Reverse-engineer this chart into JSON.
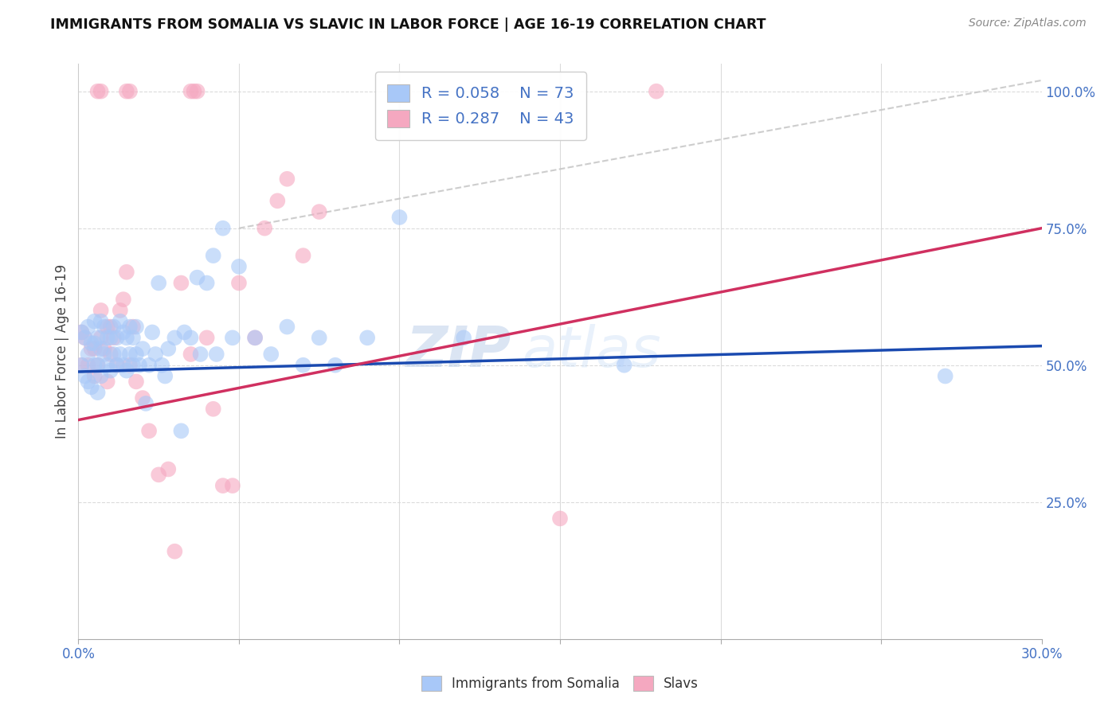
{
  "title": "IMMIGRANTS FROM SOMALIA VS SLAVIC IN LABOR FORCE | AGE 16-19 CORRELATION CHART",
  "source": "Source: ZipAtlas.com",
  "ylabel": "In Labor Force | Age 16-19",
  "xlim": [
    0.0,
    0.3
  ],
  "ylim": [
    0.0,
    1.05
  ],
  "blue_color": "#a8c8f8",
  "pink_color": "#f5a8c0",
  "blue_line_color": "#1a4ab0",
  "pink_line_color": "#d03060",
  "dashed_line_color": "#c8c8c8",
  "legend_blue_r": "0.058",
  "legend_blue_n": "73",
  "legend_pink_r": "0.287",
  "legend_pink_n": "43",
  "watermark_zip": "ZIP",
  "watermark_atlas": "atlas",
  "blue_trend_x": [
    0.0,
    0.3
  ],
  "blue_trend_y": [
    0.488,
    0.535
  ],
  "pink_trend_x": [
    0.0,
    0.3
  ],
  "pink_trend_y": [
    0.4,
    0.75
  ],
  "dash_trend_x": [
    0.05,
    0.3
  ],
  "dash_trend_y": [
    0.75,
    1.02
  ],
  "blue_points_x": [
    0.001,
    0.001,
    0.002,
    0.002,
    0.003,
    0.003,
    0.003,
    0.004,
    0.004,
    0.005,
    0.005,
    0.005,
    0.006,
    0.006,
    0.006,
    0.007,
    0.007,
    0.007,
    0.008,
    0.008,
    0.009,
    0.009,
    0.01,
    0.01,
    0.011,
    0.011,
    0.012,
    0.012,
    0.013,
    0.013,
    0.014,
    0.014,
    0.015,
    0.015,
    0.016,
    0.016,
    0.017,
    0.017,
    0.018,
    0.018,
    0.019,
    0.02,
    0.021,
    0.022,
    0.023,
    0.024,
    0.025,
    0.026,
    0.027,
    0.028,
    0.03,
    0.032,
    0.033,
    0.035,
    0.037,
    0.038,
    0.04,
    0.042,
    0.043,
    0.045,
    0.048,
    0.05,
    0.055,
    0.06,
    0.065,
    0.07,
    0.075,
    0.08,
    0.09,
    0.1,
    0.12,
    0.17,
    0.27
  ],
  "blue_points_y": [
    0.5,
    0.56,
    0.48,
    0.55,
    0.47,
    0.52,
    0.57,
    0.46,
    0.54,
    0.5,
    0.54,
    0.58,
    0.45,
    0.5,
    0.55,
    0.48,
    0.53,
    0.58,
    0.52,
    0.57,
    0.5,
    0.55,
    0.49,
    0.55,
    0.52,
    0.57,
    0.5,
    0.55,
    0.52,
    0.58,
    0.5,
    0.56,
    0.49,
    0.55,
    0.52,
    0.57,
    0.5,
    0.55,
    0.52,
    0.57,
    0.5,
    0.53,
    0.43,
    0.5,
    0.56,
    0.52,
    0.65,
    0.5,
    0.48,
    0.53,
    0.55,
    0.38,
    0.56,
    0.55,
    0.66,
    0.52,
    0.65,
    0.7,
    0.52,
    0.75,
    0.55,
    0.68,
    0.55,
    0.52,
    0.57,
    0.5,
    0.55,
    0.5,
    0.55,
    0.77,
    0.55,
    0.5,
    0.48
  ],
  "pink_points_x": [
    0.001,
    0.001,
    0.002,
    0.003,
    0.004,
    0.005,
    0.005,
    0.006,
    0.007,
    0.007,
    0.008,
    0.009,
    0.009,
    0.01,
    0.01,
    0.011,
    0.012,
    0.013,
    0.014,
    0.015,
    0.016,
    0.017,
    0.018,
    0.02,
    0.022,
    0.025,
    0.028,
    0.03,
    0.032,
    0.035,
    0.04,
    0.042,
    0.045,
    0.048,
    0.05,
    0.055,
    0.058,
    0.062,
    0.065,
    0.07,
    0.075,
    0.15,
    0.18
  ],
  "pink_points_y": [
    0.5,
    0.56,
    0.55,
    0.5,
    0.53,
    0.48,
    0.53,
    0.5,
    0.55,
    0.6,
    0.53,
    0.57,
    0.47,
    0.52,
    0.57,
    0.55,
    0.5,
    0.6,
    0.62,
    0.67,
    0.5,
    0.57,
    0.47,
    0.44,
    0.38,
    0.3,
    0.31,
    0.16,
    0.65,
    0.52,
    0.55,
    0.42,
    0.28,
    0.28,
    0.65,
    0.55,
    0.75,
    0.8,
    0.84,
    0.7,
    0.78,
    0.22,
    1.0
  ],
  "extra_pink_top_x": [
    0.006,
    0.007,
    0.015,
    0.016,
    0.035,
    0.036,
    0.037
  ],
  "extra_pink_top_y": [
    1.0,
    1.0,
    1.0,
    1.0,
    1.0,
    1.0,
    1.0
  ]
}
